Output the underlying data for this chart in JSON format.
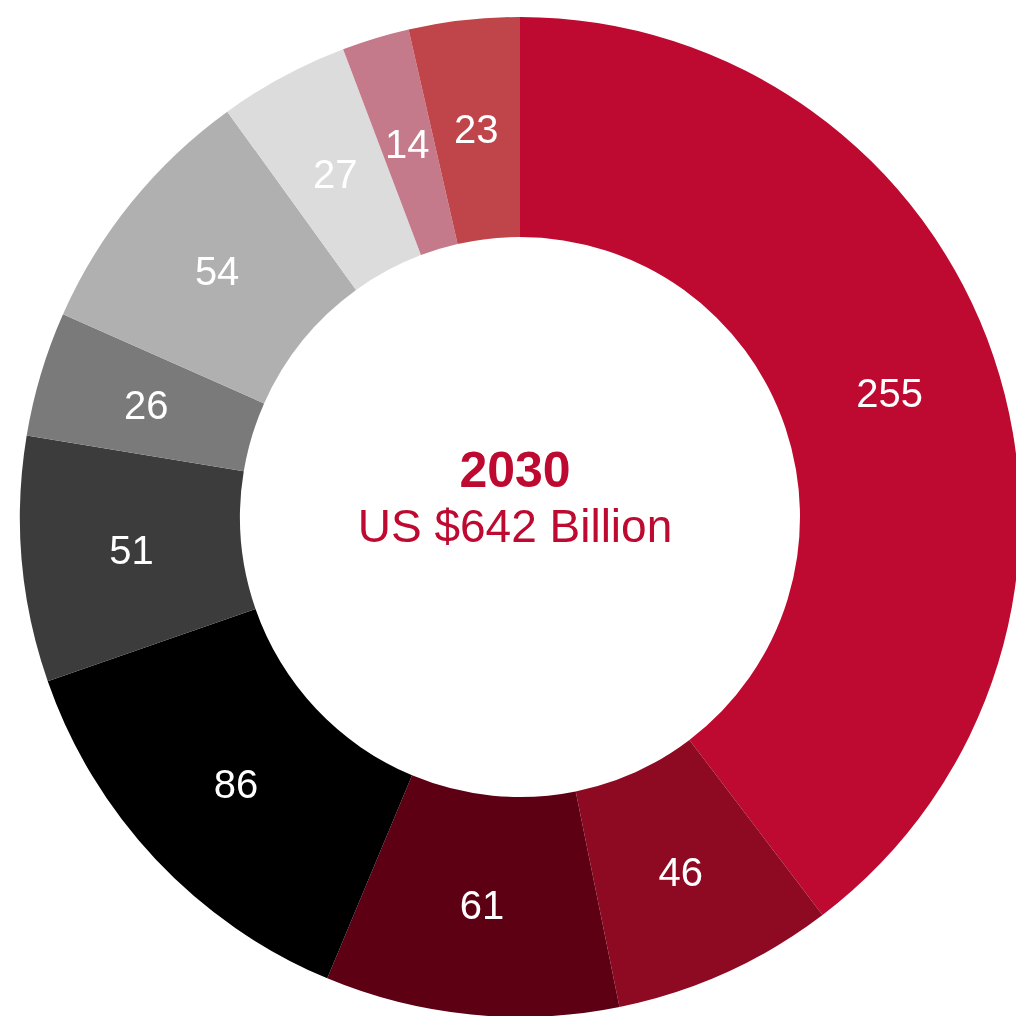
{
  "chart_data": {
    "type": "donut",
    "title": "2030",
    "subtitle": "US $642 Billion",
    "categories": [
      null,
      null,
      null,
      null,
      null,
      null,
      null,
      null,
      null,
      null
    ],
    "values": [
      255,
      46,
      61,
      86,
      51,
      26,
      54,
      27,
      14,
      23
    ],
    "colors": [
      "#be0a30",
      "#8e0a22",
      "#5e0014",
      "#000000",
      "#3c3c3c",
      "#7a7a7a",
      "#b0b0b0",
      "#dcdcdc",
      "#c47a8a",
      "#c0454a"
    ],
    "data_labels": true,
    "legend": false
  }
}
